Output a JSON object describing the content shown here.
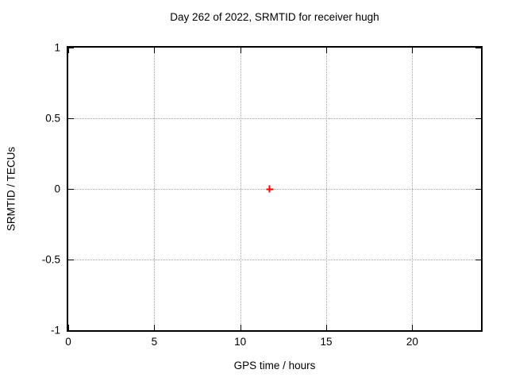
{
  "chart": {
    "title": "Day 262 of 2022, SRMTID for receiver hugh",
    "xlabel": "GPS time / hours",
    "ylabel": "SRMTID / TECUs"
  },
  "chart_data": {
    "type": "scatter",
    "title": "Day 262 of 2022, SRMTID for receiver hugh",
    "xlabel": "GPS time / hours",
    "ylabel": "SRMTID / TECUs",
    "xlim": [
      0,
      24
    ],
    "ylim": [
      -1,
      1
    ],
    "xticks": [
      0,
      5,
      10,
      15,
      20
    ],
    "yticks": [
      1,
      0.5,
      0,
      -0.5,
      -1
    ],
    "grid": true,
    "colors": {
      "border": "#000000",
      "gridline": "#a0a0a0",
      "text": "#000000",
      "background": "#ffffff"
    },
    "series": [
      {
        "marker": "plus",
        "color": "#ff0000",
        "points": [
          {
            "x": 11.7,
            "y": 0
          }
        ]
      }
    ]
  }
}
